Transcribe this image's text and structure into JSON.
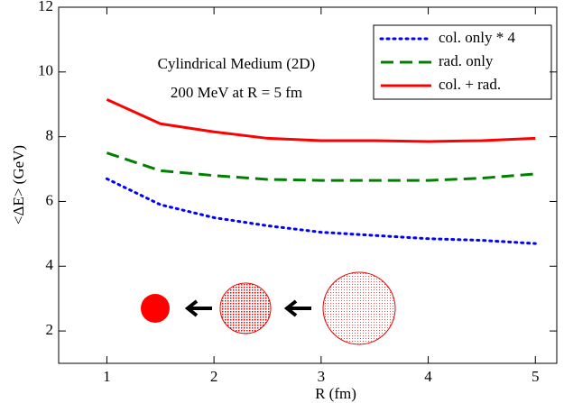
{
  "chart_data": {
    "type": "line",
    "annotations": [
      "Cylindrical Medium (2D)",
      "200 MeV at R = 5 fm"
    ],
    "x_label": "R (fm)",
    "y_label": "<ΔE> (GeV)",
    "x": [
      1,
      1.5,
      2,
      2.5,
      3,
      3.5,
      4,
      4.5,
      5
    ],
    "series": [
      {
        "name": "col. only * 4",
        "color": "#0000ff",
        "dash": "dotted",
        "values": [
          6.7,
          5.9,
          5.5,
          5.25,
          5.05,
          4.95,
          4.85,
          4.8,
          4.7
        ]
      },
      {
        "name": "rad. only",
        "color": "#008000",
        "dash": "dashed",
        "values": [
          7.5,
          6.95,
          6.8,
          6.68,
          6.65,
          6.65,
          6.65,
          6.72,
          6.85
        ]
      },
      {
        "name": "col. + rad.",
        "color": "#ff0000",
        "dash": "solid",
        "values": [
          9.15,
          8.4,
          8.15,
          7.95,
          7.88,
          7.88,
          7.85,
          7.88,
          7.95
        ]
      }
    ],
    "xlim": [
      0.55,
      5.2
    ],
    "xticks": [
      1,
      2,
      3,
      4,
      5
    ],
    "ylim": [
      1,
      12
    ],
    "yticks": [
      2,
      4,
      6,
      8,
      10,
      12
    ],
    "legend": "upper right",
    "grid": false
  }
}
